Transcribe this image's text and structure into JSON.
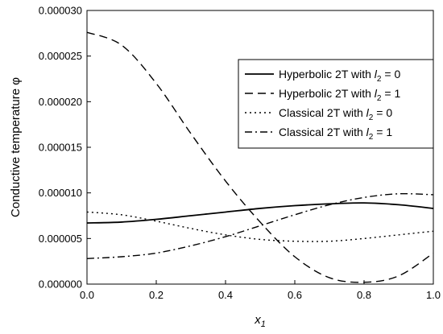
{
  "chart_data": {
    "type": "line",
    "title": "",
    "xlabel": "x",
    "xlabel_subscript": "1",
    "ylabel": "Conductive temperature φ",
    "xlim": [
      0.0,
      1.0
    ],
    "ylim": [
      0.0,
      3e-05
    ],
    "x_ticks": [
      0.0,
      0.2,
      0.4,
      0.6,
      0.8,
      1.0
    ],
    "x_tick_labels": [
      "0.0",
      "0.2",
      "0.4",
      "0.6",
      "0.8",
      "1.0"
    ],
    "y_ticks": [
      0.0,
      5e-06,
      1e-05,
      1.5e-05,
      2e-05,
      2.5e-05,
      3e-05
    ],
    "y_tick_labels": [
      "0.000000",
      "0.000005",
      "0.000010",
      "0.000015",
      "0.000020",
      "0.000025",
      "0.000030"
    ],
    "grid": false,
    "legend_position": "top-right",
    "x": [
      0.0,
      0.1,
      0.2,
      0.3,
      0.4,
      0.5,
      0.6,
      0.7,
      0.8,
      0.9,
      1.0
    ],
    "series": [
      {
        "name": "Hyperbolic 2T with ",
        "name_italic": "l",
        "name_sub": "2",
        "name_suffix": " = 0",
        "dash": "solid",
        "values": [
          6.7e-06,
          6.8e-06,
          7.1e-06,
          7.5e-06,
          7.9e-06,
          8.3e-06,
          8.6e-06,
          8.8e-06,
          8.9e-06,
          8.7e-06,
          8.3e-06
        ]
      },
      {
        "name": "Hyperbolic 2T with ",
        "name_italic": "l",
        "name_sub": "2",
        "name_suffix": " = 1",
        "dash": "dashed",
        "values": [
          2.76e-05,
          2.62e-05,
          2.2e-05,
          1.65e-05,
          1.13e-05,
          6.8e-06,
          3e-06,
          7e-07,
          2e-07,
          9e-07,
          3.4e-06
        ]
      },
      {
        "name": "Classical 2T with ",
        "name_italic": "l",
        "name_sub": "2",
        "name_suffix": " = 0",
        "dash": "dotted",
        "values": [
          7.9e-06,
          7.6e-06,
          6.9e-06,
          6.1e-06,
          5.4e-06,
          4.9e-06,
          4.7e-06,
          4.7e-06,
          5e-06,
          5.4e-06,
          5.8e-06
        ]
      },
      {
        "name": "Classical 2T with ",
        "name_italic": "l",
        "name_sub": "2",
        "name_suffix": " = 1",
        "dash": "dashdot",
        "values": [
          2.8e-06,
          3e-06,
          3.4e-06,
          4.2e-06,
          5.2e-06,
          6.4e-06,
          7.6e-06,
          8.7e-06,
          9.5e-06,
          9.9e-06,
          9.8e-06
        ]
      }
    ]
  }
}
